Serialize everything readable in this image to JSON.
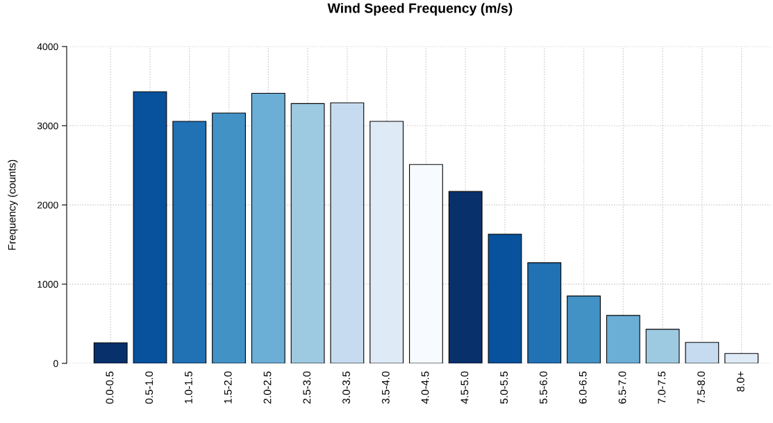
{
  "chart_data": {
    "type": "bar",
    "title": "Wind Speed Frequency (m/s)",
    "ylabel": "Frequency (counts)",
    "categories": [
      "0.0-0.5",
      "0.5-1.0",
      "1.0-1.5",
      "1.5-2.0",
      "2.0-2.5",
      "2.5-3.0",
      "3.0-3.5",
      "3.5-4.0",
      "4.0-4.5",
      "4.5-5.0",
      "5.0-5.5",
      "5.5-6.0",
      "6.0-6.5",
      "6.5-7.0",
      "7.0-7.5",
      "7.5-8.0",
      "8.0+"
    ],
    "values": [
      260,
      3430,
      3055,
      3160,
      3410,
      3280,
      3290,
      3055,
      2510,
      2170,
      1630,
      1270,
      850,
      605,
      430,
      265,
      125
    ],
    "colors": [
      "#08306b",
      "#08519c",
      "#2171b5",
      "#4292c6",
      "#6baed6",
      "#9ecae1",
      "#c6dbef",
      "#deebf7",
      "#f7fbff",
      "#08306b",
      "#08519c",
      "#2171b5",
      "#4292c6",
      "#6baed6",
      "#9ecae1",
      "#c6dbef",
      "#deebf7"
    ],
    "ylim": [
      0,
      4000
    ],
    "yticks": [
      0,
      1000,
      2000,
      3000,
      4000
    ],
    "grid": true
  }
}
